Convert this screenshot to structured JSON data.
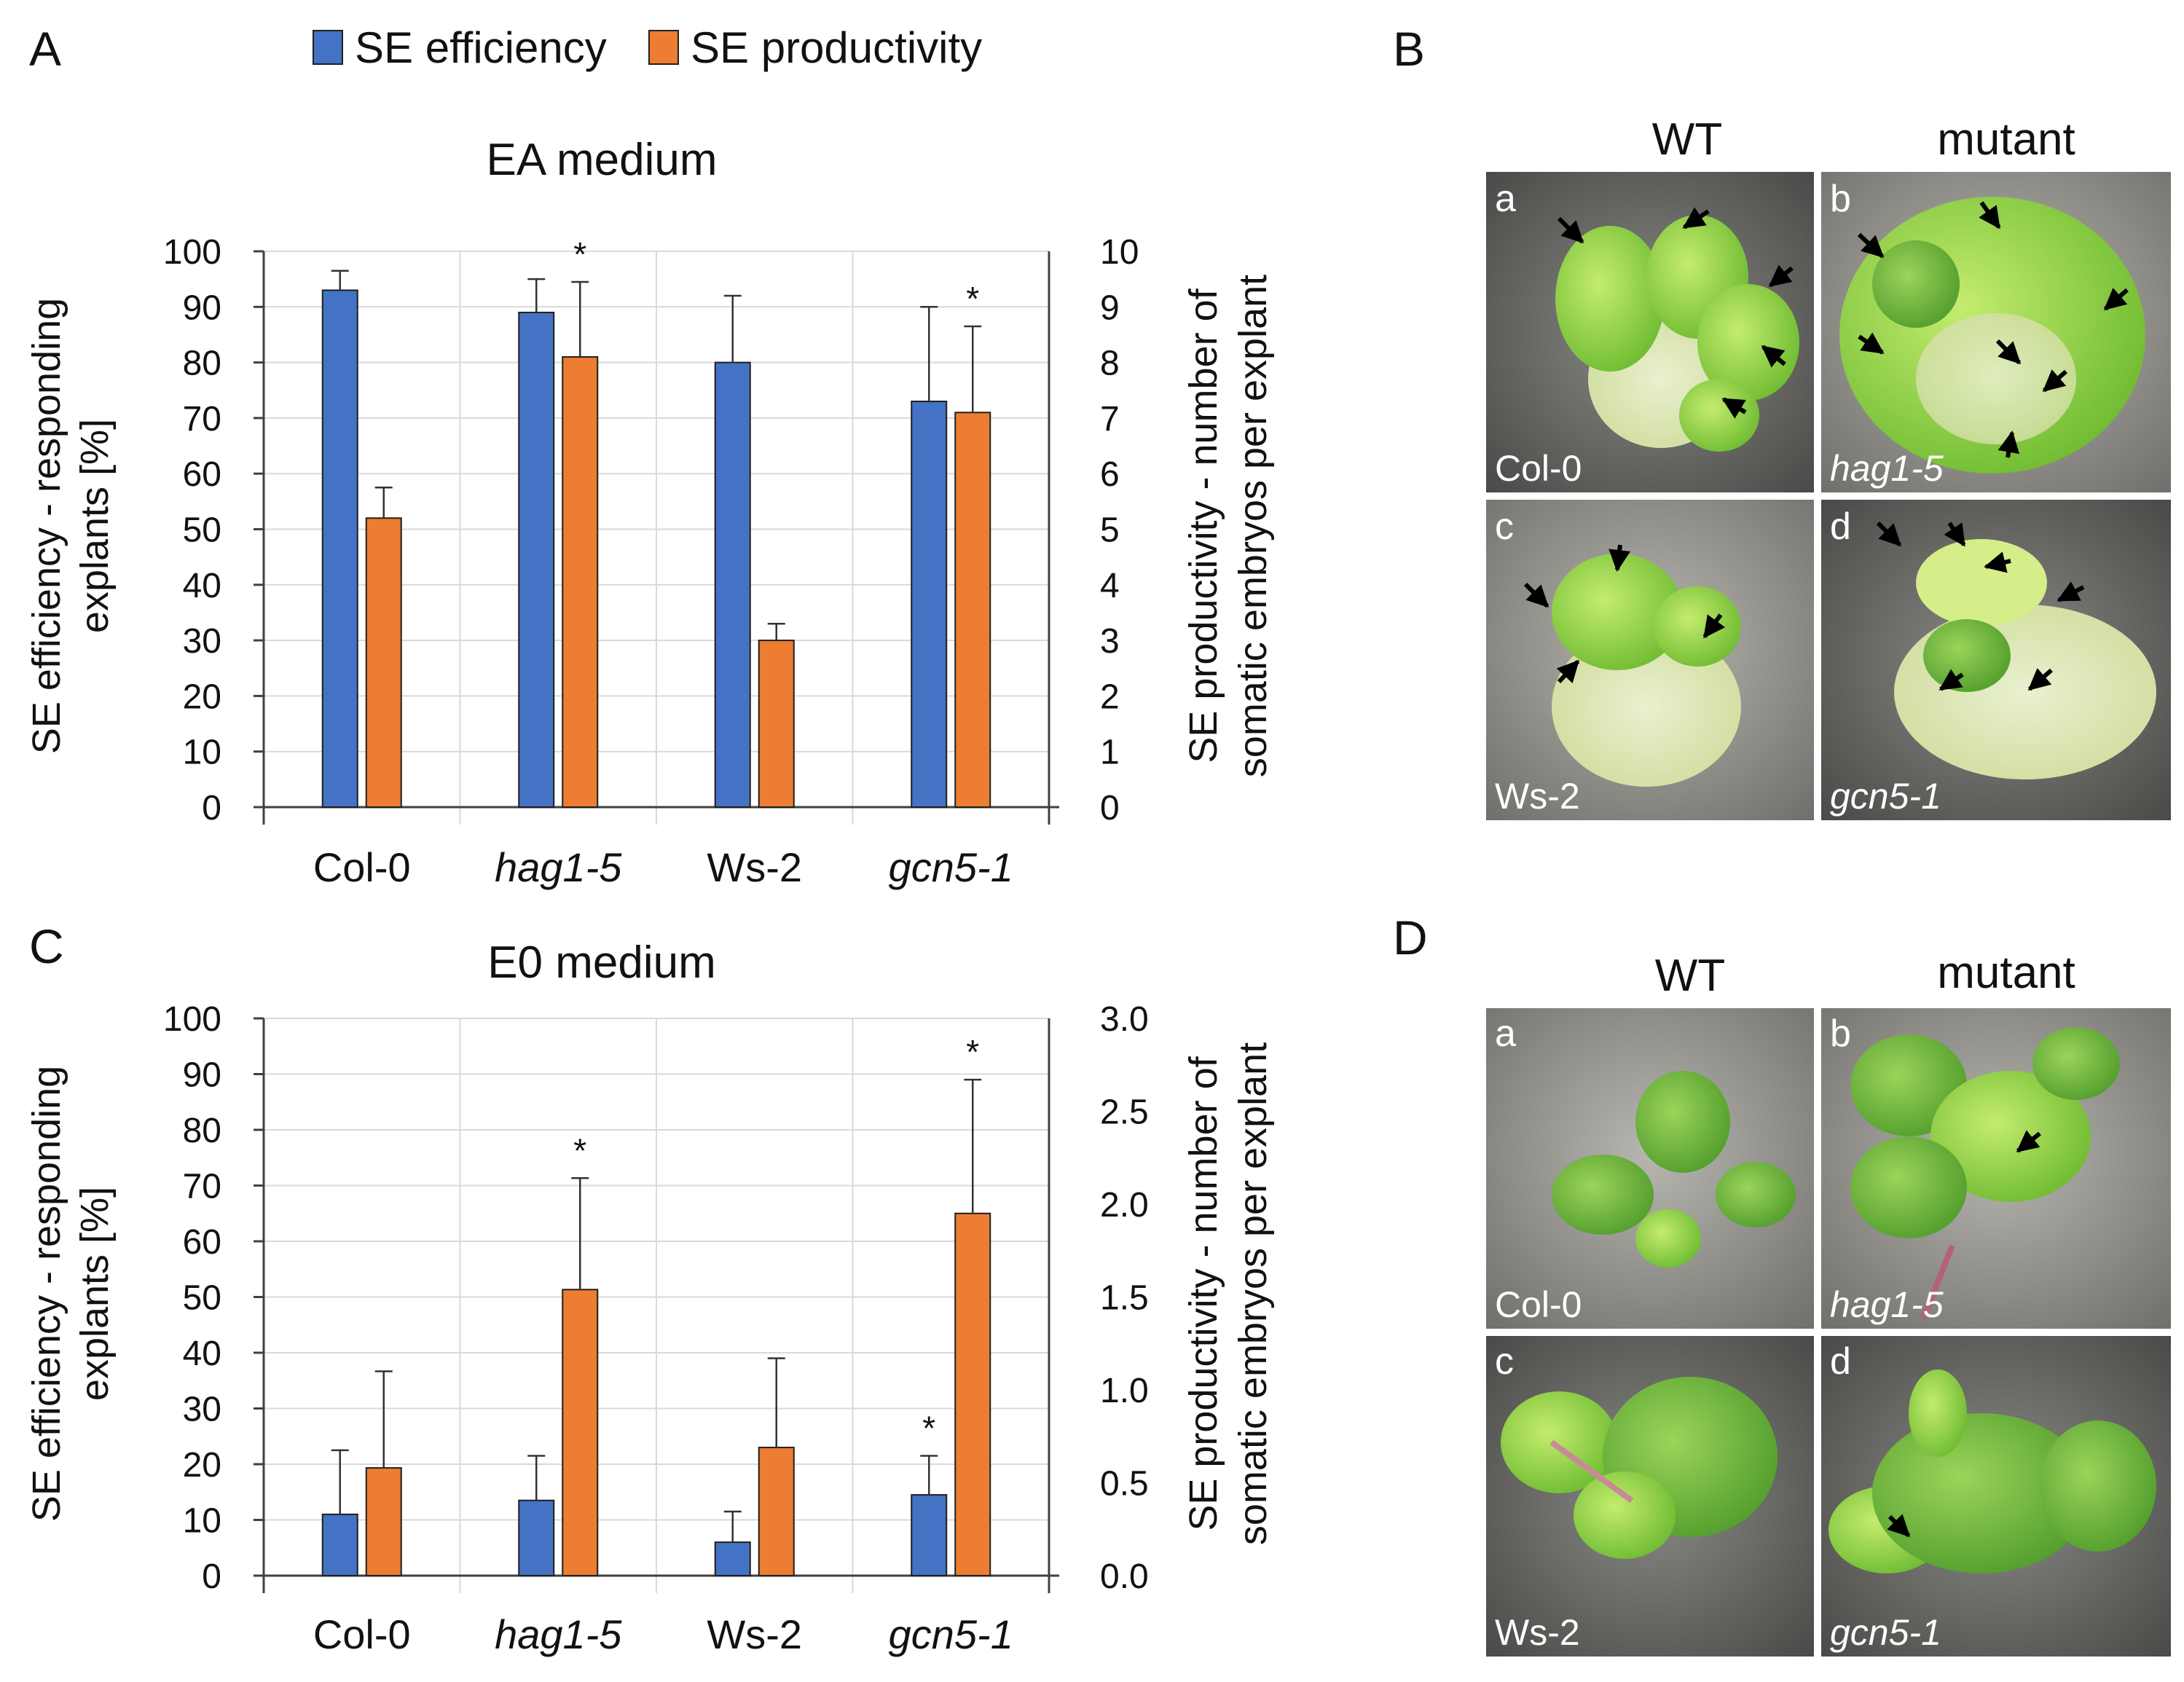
{
  "legend": {
    "efficiency_label": "SE efficiency",
    "productivity_label": "SE productivity",
    "efficiency_color": "#4472C4",
    "productivity_color": "#ED7D31"
  },
  "panel_labels": {
    "a": "A",
    "b": "B",
    "c": "C",
    "d": "D"
  },
  "axis_titles": {
    "left": [
      "SE efficiency - responding",
      "explants [%]"
    ],
    "right": [
      "SE productivity - number of",
      "somatic embryos per explant"
    ]
  },
  "chart_data": [
    {
      "type": "bar",
      "title": "EA medium",
      "categories": [
        "Col-0",
        "hag1-5",
        "Ws-2",
        "gcn5-1"
      ],
      "italic_categories": [
        false,
        true,
        false,
        true
      ],
      "left_axis": {
        "label": "SE efficiency - responding explants [%]",
        "ylim": [
          0,
          100
        ],
        "ticks": [
          "0",
          "10",
          "20",
          "30",
          "40",
          "50",
          "60",
          "70",
          "80",
          "90",
          "100"
        ]
      },
      "right_axis": {
        "label": "SE productivity - number of somatic embryos per explant",
        "ylim": [
          0,
          10
        ],
        "ticks": [
          "0",
          "1",
          "2",
          "3",
          "4",
          "5",
          "6",
          "7",
          "8",
          "9",
          "10"
        ]
      },
      "series": [
        {
          "name": "SE efficiency",
          "axis": "left",
          "values": [
            93,
            89,
            80,
            73
          ],
          "errors": [
            3.5,
            6,
            12,
            17
          ],
          "significant": [
            false,
            false,
            false,
            false
          ]
        },
        {
          "name": "SE productivity",
          "axis": "right",
          "values": [
            5.2,
            8.1,
            3.0,
            7.1
          ],
          "errors": [
            0.55,
            1.35,
            0.3,
            1.55
          ],
          "significant": [
            false,
            true,
            false,
            true
          ]
        }
      ],
      "significance_mark": "*",
      "grid": true
    },
    {
      "type": "bar",
      "title": "E0 medium",
      "categories": [
        "Col-0",
        "hag1-5",
        "Ws-2",
        "gcn5-1"
      ],
      "italic_categories": [
        false,
        true,
        false,
        true
      ],
      "left_axis": {
        "label": "SE efficiency - responding explants [%]",
        "ylim": [
          0,
          100
        ],
        "ticks": [
          "0",
          "10",
          "20",
          "30",
          "40",
          "50",
          "60",
          "70",
          "80",
          "90",
          "100"
        ]
      },
      "right_axis": {
        "label": "SE productivity - number of somatic embryos per explant",
        "ylim": [
          0,
          3
        ],
        "ticks": [
          "0.0",
          "0.5",
          "1.0",
          "1.5",
          "2.0",
          "2.5",
          "3.0"
        ]
      },
      "series": [
        {
          "name": "SE efficiency",
          "axis": "left",
          "values": [
            11,
            13.5,
            6,
            14.5
          ],
          "errors": [
            11.5,
            8,
            5.5,
            7
          ],
          "significant": [
            false,
            false,
            false,
            true
          ]
        },
        {
          "name": "SE productivity",
          "axis": "right",
          "values": [
            0.58,
            1.54,
            0.69,
            1.95
          ],
          "errors": [
            0.52,
            0.6,
            0.48,
            0.72
          ],
          "significant": [
            false,
            true,
            false,
            true
          ]
        }
      ],
      "significance_mark": "*",
      "grid": true
    }
  ],
  "panel_b": {
    "col_headers": [
      "WT",
      "mutant"
    ],
    "images": [
      {
        "letter": "a",
        "label": "Col-0",
        "italic": false
      },
      {
        "letter": "b",
        "label": "hag1-5",
        "italic": true
      },
      {
        "letter": "c",
        "label": "Ws-2",
        "italic": false
      },
      {
        "letter": "d",
        "label": "gcn5-1",
        "italic": true
      }
    ]
  },
  "panel_d": {
    "col_headers": [
      "WT",
      "mutant"
    ],
    "images": [
      {
        "letter": "a",
        "label": "Col-0",
        "italic": false
      },
      {
        "letter": "b",
        "label": "hag1-5",
        "italic": true
      },
      {
        "letter": "c",
        "label": "Ws-2",
        "italic": false
      },
      {
        "letter": "d",
        "label": "gcn5-1",
        "italic": true
      }
    ]
  }
}
